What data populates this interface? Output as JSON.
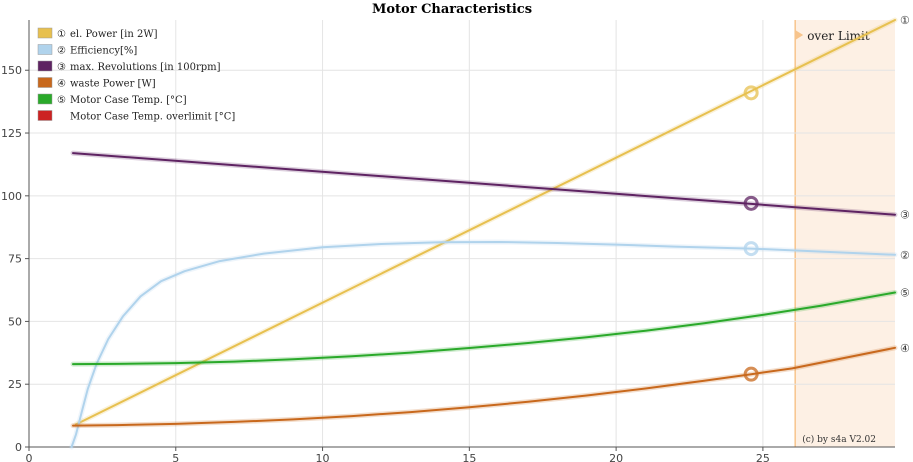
{
  "chart_data": {
    "type": "line",
    "title": "Motor Characteristics",
    "xlim": [
      0,
      29.5
    ],
    "ylim": [
      0,
      170
    ],
    "x_ticks": [
      0,
      5,
      10,
      15,
      20,
      25
    ],
    "y_ticks": [
      0,
      25,
      50,
      75,
      100,
      125,
      150
    ],
    "grid": true,
    "legend_placement": "top-left",
    "overlimit_region": {
      "x_start": 26.1,
      "x_end": 29.5,
      "label": "over Limit",
      "color": "#fdf0e4",
      "edge_color": "#f7c48c"
    },
    "marker_x": 24.6,
    "copyright": "(c) by s4a    V2.02",
    "series": [
      {
        "name": "el. Power [in 2W]",
        "legend_prefix": "①",
        "end_label": "①",
        "color": "#e7c04f",
        "points": [
          [
            1.6,
            9
          ],
          [
            29.5,
            170
          ]
        ],
        "marker": [
          24.6,
          141
        ]
      },
      {
        "name": "Efficiency[%]",
        "legend_prefix": "②",
        "end_label": "②",
        "color": "#b0d3ec",
        "points": [
          [
            1.45,
            0
          ],
          [
            1.6,
            5
          ],
          [
            1.8,
            14
          ],
          [
            2.0,
            23
          ],
          [
            2.3,
            33
          ],
          [
            2.7,
            43
          ],
          [
            3.2,
            52
          ],
          [
            3.8,
            60
          ],
          [
            4.5,
            66
          ],
          [
            5.3,
            70
          ],
          [
            6.5,
            74
          ],
          [
            8,
            77
          ],
          [
            10,
            79.5
          ],
          [
            12,
            80.8
          ],
          [
            14,
            81.5
          ],
          [
            16,
            81.6
          ],
          [
            18,
            81.2
          ],
          [
            20,
            80.6
          ],
          [
            22,
            79.8
          ],
          [
            24.6,
            79
          ],
          [
            27,
            77.8
          ],
          [
            29.5,
            76.5
          ]
        ],
        "marker": [
          24.6,
          79
        ]
      },
      {
        "name": "max. Revolutions [in 100rpm]",
        "legend_prefix": "③",
        "end_label": "③",
        "color": "#5e2362",
        "points": [
          [
            1.5,
            117
          ],
          [
            29.5,
            92.5
          ]
        ],
        "marker": [
          24.6,
          97
        ]
      },
      {
        "name": "waste Power [W]",
        "legend_prefix": "④",
        "end_label": "④",
        "color": "#c8681c",
        "points": [
          [
            1.5,
            8.5
          ],
          [
            3,
            8.7
          ],
          [
            5,
            9.2
          ],
          [
            7,
            10
          ],
          [
            9,
            11
          ],
          [
            11,
            12.3
          ],
          [
            13,
            13.9
          ],
          [
            15,
            15.8
          ],
          [
            17,
            18
          ],
          [
            19,
            20.5
          ],
          [
            21,
            23.3
          ],
          [
            23,
            26.4
          ],
          [
            24.6,
            29
          ],
          [
            26,
            31.3
          ],
          [
            28,
            36
          ],
          [
            29.5,
            39.5
          ]
        ],
        "marker": [
          24.6,
          29
        ]
      },
      {
        "name": "Motor Case Temp. [°C]",
        "legend_prefix": "⑤",
        "end_label": "⑤",
        "color": "#2aa92a",
        "points": [
          [
            1.5,
            33
          ],
          [
            3,
            33.1
          ],
          [
            5,
            33.4
          ],
          [
            7,
            34
          ],
          [
            9,
            34.9
          ],
          [
            11,
            36.1
          ],
          [
            13,
            37.6
          ],
          [
            15,
            39.4
          ],
          [
            17,
            41.4
          ],
          [
            19,
            43.7
          ],
          [
            21,
            46.3
          ],
          [
            23,
            49.3
          ],
          [
            25,
            52.6
          ],
          [
            27,
            56.3
          ],
          [
            29.5,
            61.5
          ]
        ],
        "marker": null
      },
      {
        "name": "Motor Case Temp. overlimit [°C]",
        "legend_prefix": "",
        "end_label": "",
        "color": "#cc2222",
        "points": [],
        "marker": null
      }
    ]
  }
}
